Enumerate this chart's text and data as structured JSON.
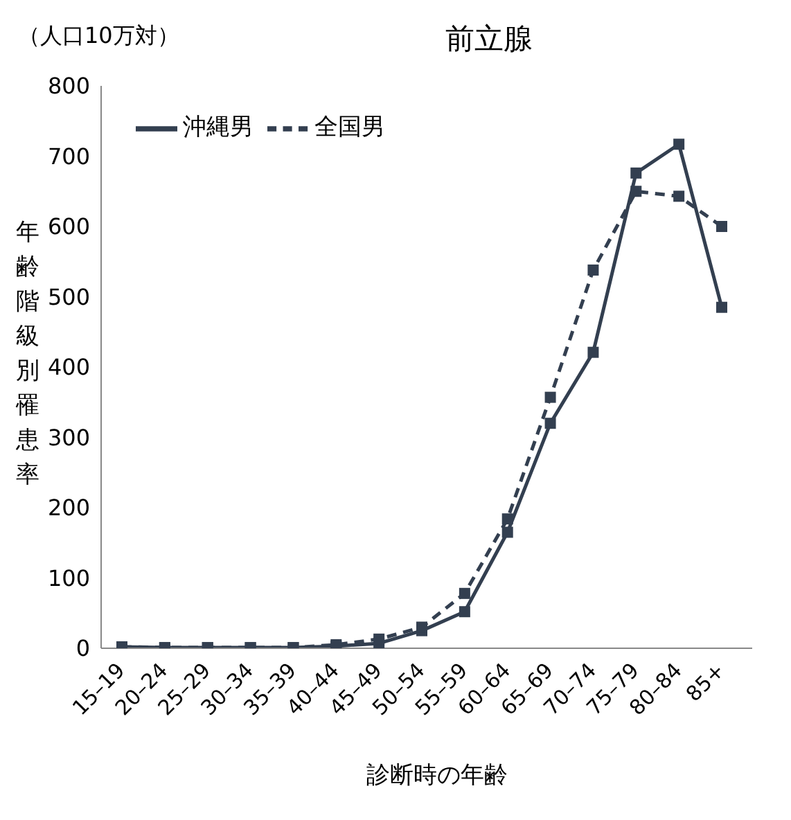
{
  "chart_data": {
    "type": "line",
    "title": "前立腺",
    "subtitle": "（人口10万対）",
    "xlabel": "診断時の年齢",
    "ylabel": "年齢階級別罹患率",
    "categories": [
      "15–19",
      "20–24",
      "25–29",
      "30–34",
      "35–39",
      "40–44",
      "45–49",
      "50–54",
      "55–59",
      "60–64",
      "65–69",
      "70–74",
      "75–79",
      "80–84",
      "85+"
    ],
    "series": [
      {
        "name": "沖縄男",
        "color": "#333f50",
        "line_style": "solid",
        "values": [
          2,
          1,
          1,
          1,
          1,
          3,
          7,
          25,
          52,
          165,
          320,
          421,
          676,
          717,
          485
        ]
      },
      {
        "name": "全国男",
        "color": "#333f50",
        "line_style": "dashed",
        "values": [
          2,
          1,
          1,
          1,
          1,
          5,
          13,
          30,
          78,
          184,
          357,
          538,
          650,
          643,
          600
        ]
      }
    ],
    "ylim": [
      0,
      800
    ],
    "yticks": [
      0,
      100,
      200,
      300,
      400,
      500,
      600,
      700,
      800
    ],
    "legend": "top left",
    "marker": "square"
  }
}
